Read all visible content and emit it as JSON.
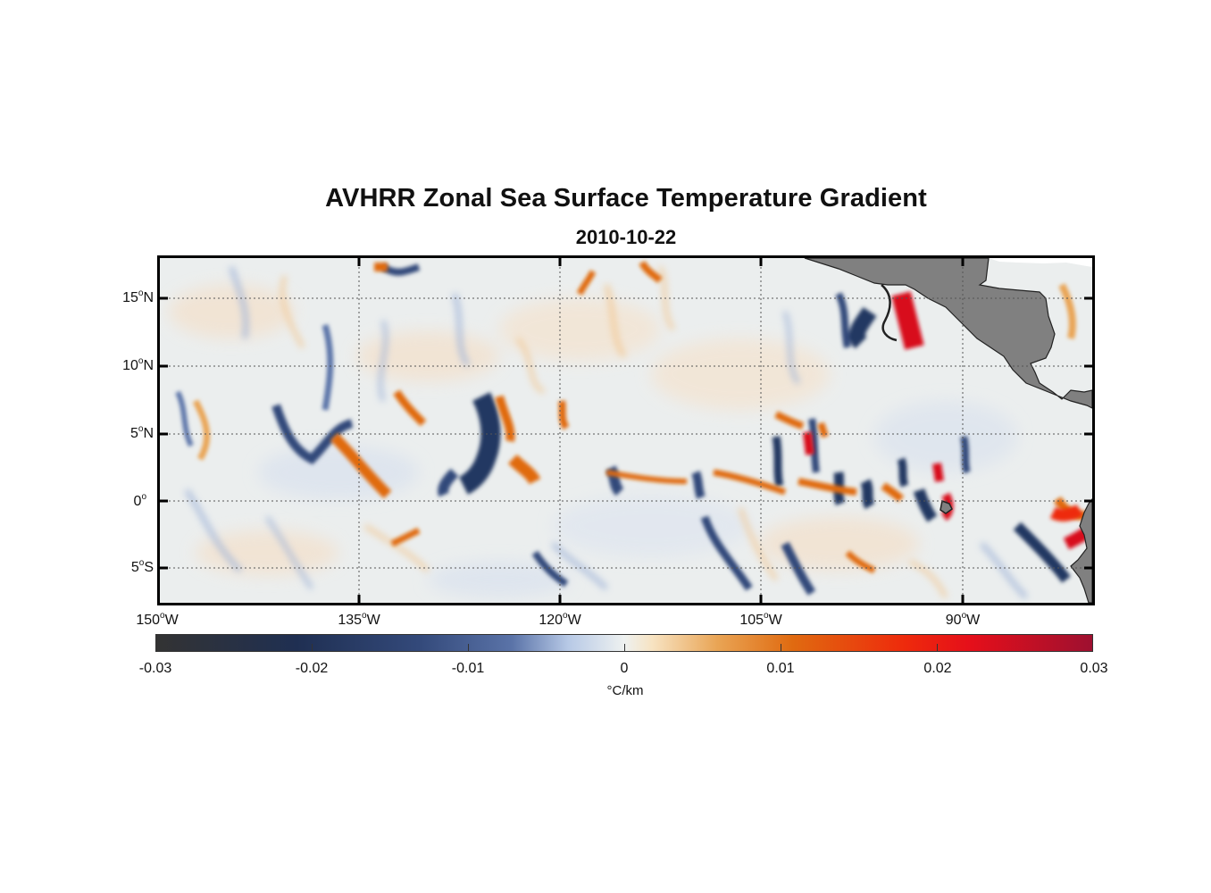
{
  "title": "AVHRR Zonal Sea Surface Temperature Gradient",
  "subtitle": "2010-10-22",
  "map": {
    "region": "Eastern tropical Pacific",
    "land_color": "#808080",
    "ocean_background": "#ebeeee",
    "lat_labels": [
      {
        "deg": "15",
        "hemi": "N"
      },
      {
        "deg": "10",
        "hemi": "N"
      },
      {
        "deg": "5",
        "hemi": "N"
      },
      {
        "deg": "0",
        "hemi": ""
      },
      {
        "deg": "5",
        "hemi": "S"
      }
    ],
    "lon_labels": [
      {
        "deg": "150",
        "hemi": "W"
      },
      {
        "deg": "135",
        "hemi": "W"
      },
      {
        "deg": "120",
        "hemi": "W"
      },
      {
        "deg": "105",
        "hemi": "W"
      },
      {
        "deg": "90",
        "hemi": "W"
      }
    ],
    "degree_symbol": "o"
  },
  "colorbar": {
    "min": -0.03,
    "max": 0.03,
    "ticks": [
      "-0.03",
      "-0.02",
      "-0.01",
      "0",
      "0.01",
      "0.02",
      "0.03"
    ],
    "label": "°C/km",
    "colors": {
      "strong_negative": "#333333",
      "negative": "#243862",
      "weak_negative": "#9fb3d8",
      "zero": "#eef1f0",
      "weak_positive": "#f2c690",
      "positive": "#e06a10",
      "strong_positive": "#d8101e"
    }
  }
}
